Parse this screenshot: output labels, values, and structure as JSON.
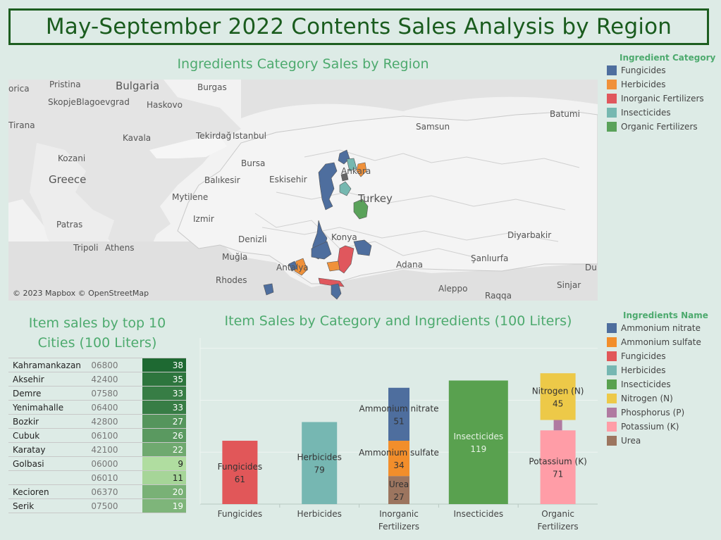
{
  "title": "May-September 2022 Contents Sales Analysis by Region",
  "map_section": {
    "title": "Ingredients Category Sales by Region",
    "attribution": "© 2023 Mapbox © OpenStreetMap",
    "labels": [
      "orica",
      "Pristina",
      "Bulgaria",
      "Burgas",
      "Skopje",
      "Blagoevgrad",
      "Haskovo",
      "Batumi",
      "Tirana",
      "Kavala",
      "Tekirdağ",
      "Istanbul",
      "Samsun",
      "Kozani",
      "Bursa",
      "Eskisehir",
      "Ankara",
      "Greece",
      "Balıkesir",
      "Turkey",
      "Mytilene",
      "Izmir",
      "Patras",
      "Konya",
      "Denizli",
      "Diyarbakir",
      "Tripoli",
      "Athens",
      "Muğla",
      "Antalya",
      "Adana",
      "Şanlıurfa",
      "Rhodes",
      "Aleppo",
      "Raqqa",
      "Sinjar",
      "Du"
    ]
  },
  "category_legend": {
    "title": "Ingredient Category",
    "items": [
      {
        "label": "Fungicides",
        "color": "#4e6e9e"
      },
      {
        "label": "Herbicides",
        "color": "#f0913a"
      },
      {
        "label": "Inorganic Fertilizers",
        "color": "#e0575d"
      },
      {
        "label": "Insecticides",
        "color": "#76b8b0"
      },
      {
        "label": "Organic Fertilizers",
        "color": "#5aa25a"
      }
    ]
  },
  "cities_section": {
    "title_line1": "Item sales by top 10",
    "title_line2": "Cities (100 Liters)",
    "rows": [
      {
        "city": "Kahramankazan",
        "zip": "06800",
        "value": 38
      },
      {
        "city": "Aksehir",
        "zip": "42400",
        "value": 35
      },
      {
        "city": "Demre",
        "zip": "07580",
        "value": 33
      },
      {
        "city": "Yenimahalle",
        "zip": "06400",
        "value": 33
      },
      {
        "city": "Bozkir",
        "zip": "42800",
        "value": 27
      },
      {
        "city": "Cubuk",
        "zip": "06100",
        "value": 26
      },
      {
        "city": "Karatay",
        "zip": "42100",
        "value": 22
      },
      {
        "city": "Golbasi",
        "zip": "06000",
        "value": 9
      },
      {
        "city": "",
        "zip": "06010",
        "value": 11
      },
      {
        "city": "Kecioren",
        "zip": "06370",
        "value": 20
      },
      {
        "city": "Serik",
        "zip": "07500",
        "value": 19
      }
    ]
  },
  "ingredients_legend": {
    "title": "Ingredients Name",
    "items": [
      {
        "label": "Ammonium nitrate",
        "color": "#4e6e9e"
      },
      {
        "label": "Ammonium sulfate",
        "color": "#f28e2b"
      },
      {
        "label": "Fungicides",
        "color": "#e15759"
      },
      {
        "label": "Herbicides",
        "color": "#76b7b2"
      },
      {
        "label": "Insecticides",
        "color": "#59a14f"
      },
      {
        "label": "Nitrogen (N)",
        "color": "#edc948"
      },
      {
        "label": "Phosphorus (P)",
        "color": "#b07aa1"
      },
      {
        "label": "Potassium (K)",
        "color": "#ff9da7"
      },
      {
        "label": "Urea",
        "color": "#9c755f"
      }
    ]
  },
  "chart_data": {
    "type": "bar",
    "title": "Item Sales by Category and Ingredients (100 Liters)",
    "categories": [
      "Fungicides",
      "Herbicides",
      "Inorganic Fertilizers",
      "Insecticides",
      "Organic Fertilizers"
    ],
    "series": [
      {
        "name": "Fungicides",
        "values": [
          61,
          0,
          0,
          0,
          0
        ],
        "color": "#e15759"
      },
      {
        "name": "Herbicides",
        "values": [
          0,
          79,
          0,
          0,
          0
        ],
        "color": "#76b7b2"
      },
      {
        "name": "Urea",
        "values": [
          0,
          0,
          27,
          0,
          0
        ],
        "color": "#9c755f"
      },
      {
        "name": "Ammonium sulfate",
        "values": [
          0,
          0,
          34,
          0,
          0
        ],
        "color": "#f28e2b"
      },
      {
        "name": "Ammonium nitrate",
        "values": [
          0,
          0,
          51,
          0,
          0
        ],
        "color": "#4e6e9e"
      },
      {
        "name": "Insecticides",
        "values": [
          0,
          0,
          0,
          119,
          0
        ],
        "color": "#59a14f"
      },
      {
        "name": "Potassium (K)",
        "values": [
          0,
          0,
          0,
          0,
          71
        ],
        "color": "#ff9da7"
      },
      {
        "name": "Phosphorus (P)",
        "values": [
          0,
          0,
          0,
          0,
          10
        ],
        "color": "#b07aa1"
      },
      {
        "name": "Nitrogen (N)",
        "values": [
          0,
          0,
          0,
          0,
          45
        ],
        "color": "#edc948"
      }
    ],
    "ylim": [
      0,
      160
    ],
    "grid": true
  }
}
